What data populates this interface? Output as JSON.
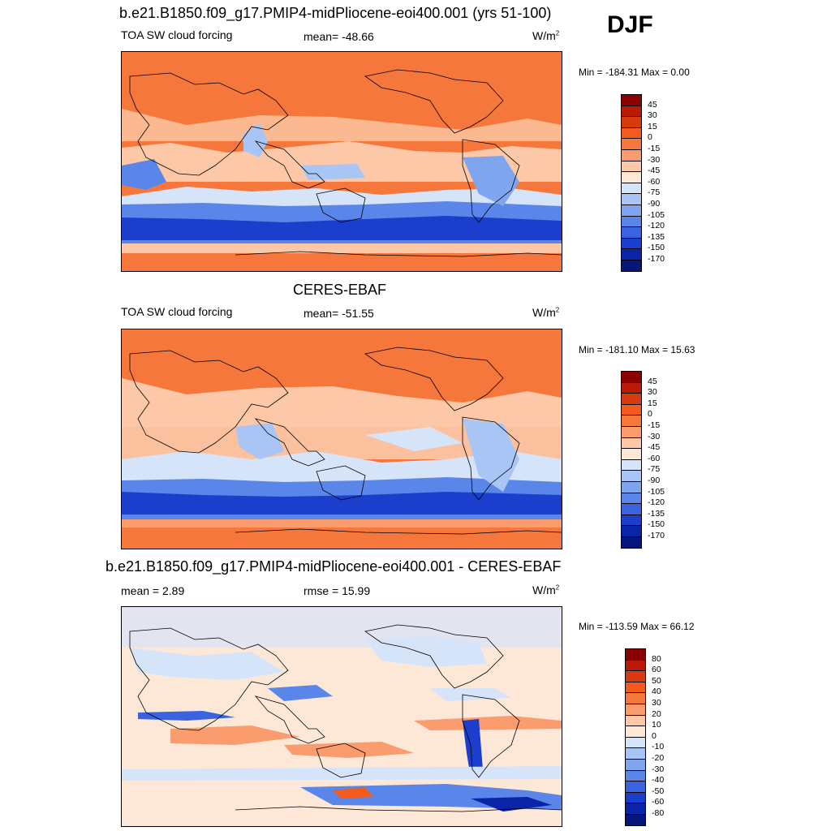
{
  "season": "DJF",
  "panels": [
    {
      "title": "b.e21.B1850.f09_g17.PMIP4-midPliocene-eoi400.001 (yrs 51-100)",
      "left_label": "TOA SW cloud forcing",
      "mean_label": "mean= -48.66",
      "units": "W/m",
      "units_sup": "2",
      "minmax": "Min = -184.31 Max =   0.00",
      "colorbar": {
        "labels": [
          "45",
          "30",
          "15",
          "0",
          "-15",
          "-30",
          "-45",
          "-60",
          "-75",
          "-90",
          "-105",
          "-120",
          "-135",
          "-150",
          "-170"
        ],
        "colors": [
          "#8b0000",
          "#b81a04",
          "#d83a0f",
          "#f25a1e",
          "#f5773b",
          "#fa9c6e",
          "#fcc8a8",
          "#fde8d8",
          "#d6e4fa",
          "#a9c5f5",
          "#7fa5ef",
          "#5a86ea",
          "#3a63e0",
          "#1b3fcc",
          "#0a24a8",
          "#05157a"
        ]
      }
    },
    {
      "title": "CERES-EBAF",
      "left_label": "TOA SW cloud forcing",
      "mean_label": "mean= -51.55",
      "units": "W/m",
      "units_sup": "2",
      "minmax": "Min = -181.10 Max =  15.63",
      "colorbar": {
        "labels": [
          "45",
          "30",
          "15",
          "0",
          "-15",
          "-30",
          "-45",
          "-60",
          "-75",
          "-90",
          "-105",
          "-120",
          "-135",
          "-150",
          "-170"
        ],
        "colors": [
          "#8b0000",
          "#b81a04",
          "#d83a0f",
          "#f25a1e",
          "#f5773b",
          "#fa9c6e",
          "#fcc8a8",
          "#fde8d8",
          "#d6e4fa",
          "#a9c5f5",
          "#7fa5ef",
          "#5a86ea",
          "#3a63e0",
          "#1b3fcc",
          "#0a24a8",
          "#05157a"
        ]
      }
    },
    {
      "title": "b.e21.B1850.f09_g17.PMIP4-midPliocene-eoi400.001 - CERES-EBAF",
      "left_label": "mean =   2.89",
      "mean_label": "rmse =  15.99",
      "units": "W/m",
      "units_sup": "2",
      "minmax": "Min = -113.59 Max =  66.12",
      "colorbar": {
        "labels": [
          "80",
          "60",
          "50",
          "40",
          "30",
          "20",
          "10",
          "0",
          "-10",
          "-20",
          "-30",
          "-40",
          "-50",
          "-60",
          "-80"
        ],
        "colors": [
          "#8b0000",
          "#b81a04",
          "#d83a0f",
          "#f25a1e",
          "#f5773b",
          "#fa9c6e",
          "#fcc8a8",
          "#fde8d8",
          "#d6e4fa",
          "#a9c5f5",
          "#7fa5ef",
          "#5a86ea",
          "#3a63e0",
          "#1b3fcc",
          "#0a24a8",
          "#05157a"
        ]
      }
    }
  ]
}
